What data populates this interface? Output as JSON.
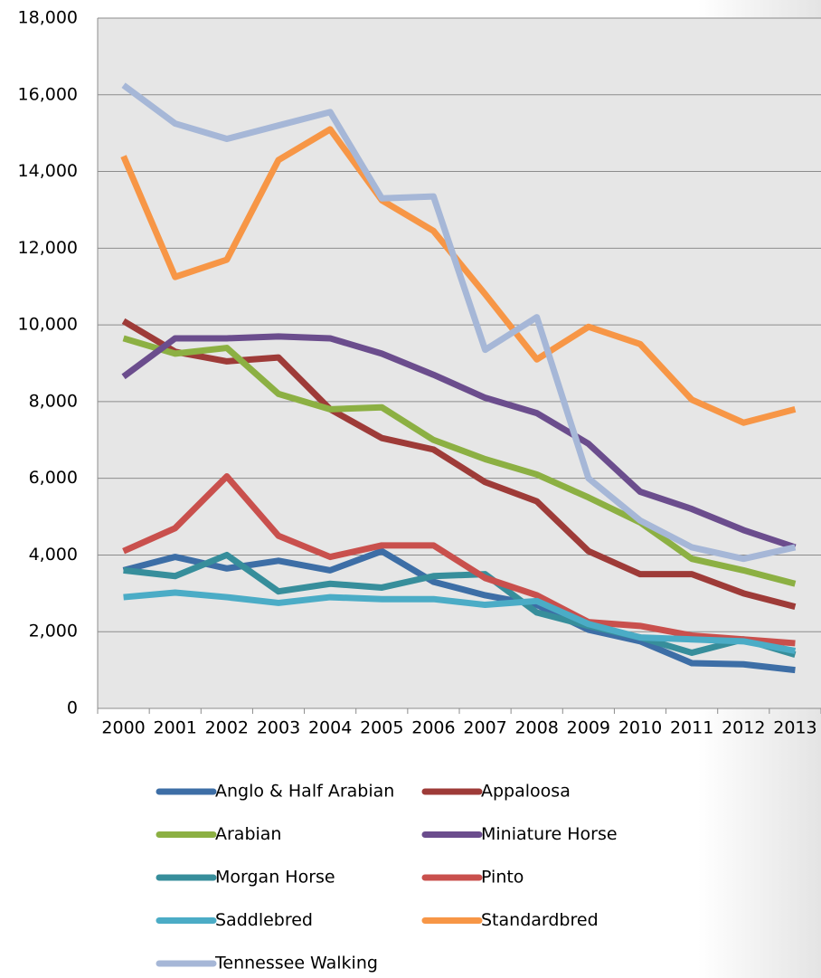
{
  "chart_data": {
    "type": "line",
    "categories": [
      "2000",
      "2001",
      "2002",
      "2003",
      "2004",
      "2005",
      "2006",
      "2007",
      "2008",
      "2009",
      "2010",
      "2011",
      "2012",
      "2013"
    ],
    "series": [
      {
        "name": "Anglo & Half Arabian",
        "color": "#3d6ea6",
        "values": [
          3600,
          3950,
          3650,
          3850,
          3600,
          4100,
          3300,
          2950,
          2700,
          2050,
          1750,
          1180,
          1150,
          1000
        ]
      },
      {
        "name": "Appaloosa",
        "color": "#9e3b38",
        "values": [
          10100,
          9300,
          9050,
          9150,
          7800,
          7050,
          6750,
          5900,
          5400,
          4100,
          3500,
          3500,
          3000,
          2650
        ]
      },
      {
        "name": "Arabian",
        "color": "#8cb043",
        "values": [
          9650,
          9250,
          9400,
          8200,
          7800,
          7850,
          7000,
          6500,
          6100,
          5500,
          4850,
          3900,
          3600,
          3250
        ]
      },
      {
        "name": "Miniature Horse",
        "color": "#6b4d8d",
        "values": [
          8650,
          9650,
          9650,
          9700,
          9650,
          9250,
          8700,
          8100,
          7700,
          6900,
          5650,
          5200,
          4650,
          4200
        ]
      },
      {
        "name": "Morgan Horse",
        "color": "#378e9b",
        "values": [
          3600,
          3450,
          4000,
          3050,
          3250,
          3150,
          3450,
          3500,
          2500,
          2150,
          1850,
          1450,
          1800,
          1400
        ]
      },
      {
        "name": "Pinto",
        "color": "#c9504d",
        "values": [
          4100,
          4700,
          6050,
          4500,
          3950,
          4250,
          4250,
          3400,
          2950,
          2250,
          2150,
          1900,
          1800,
          1700
        ]
      },
      {
        "name": "Saddlebred",
        "color": "#4bacc6",
        "values": [
          2900,
          3020,
          2900,
          2750,
          2900,
          2850,
          2850,
          2700,
          2800,
          2200,
          1850,
          1800,
          1750,
          1500
        ]
      },
      {
        "name": "Standardbred",
        "color": "#f79646",
        "values": [
          14400,
          11250,
          11700,
          14300,
          15100,
          13250,
          12450,
          10800,
          9100,
          9950,
          9500,
          8050,
          7450,
          7800
        ]
      },
      {
        "name": "Tennessee Walking",
        "color": "#a6b7d7",
        "values": [
          16250,
          15250,
          14850,
          15200,
          15550,
          13300,
          13350,
          9350,
          10200,
          6000,
          4900,
          4200,
          3900,
          4200
        ]
      }
    ],
    "ylim": [
      0,
      18000
    ],
    "yticks": [
      0,
      {
        "value": 2000,
        "label": "2,000"
      },
      {
        "value": 4000,
        "label": "4,000"
      },
      {
        "value": 6000,
        "label": "6,000"
      },
      {
        "value": 8000,
        "label": "8,000"
      },
      {
        "value": 10000,
        "label": "10,000"
      },
      {
        "value": 12000,
        "label": "12,000"
      },
      {
        "value": 14000,
        "label": "14,000"
      },
      {
        "value": 16000,
        "label": "16,000"
      },
      {
        "value": 18000,
        "label": "18,000"
      }
    ],
    "grid": true
  }
}
